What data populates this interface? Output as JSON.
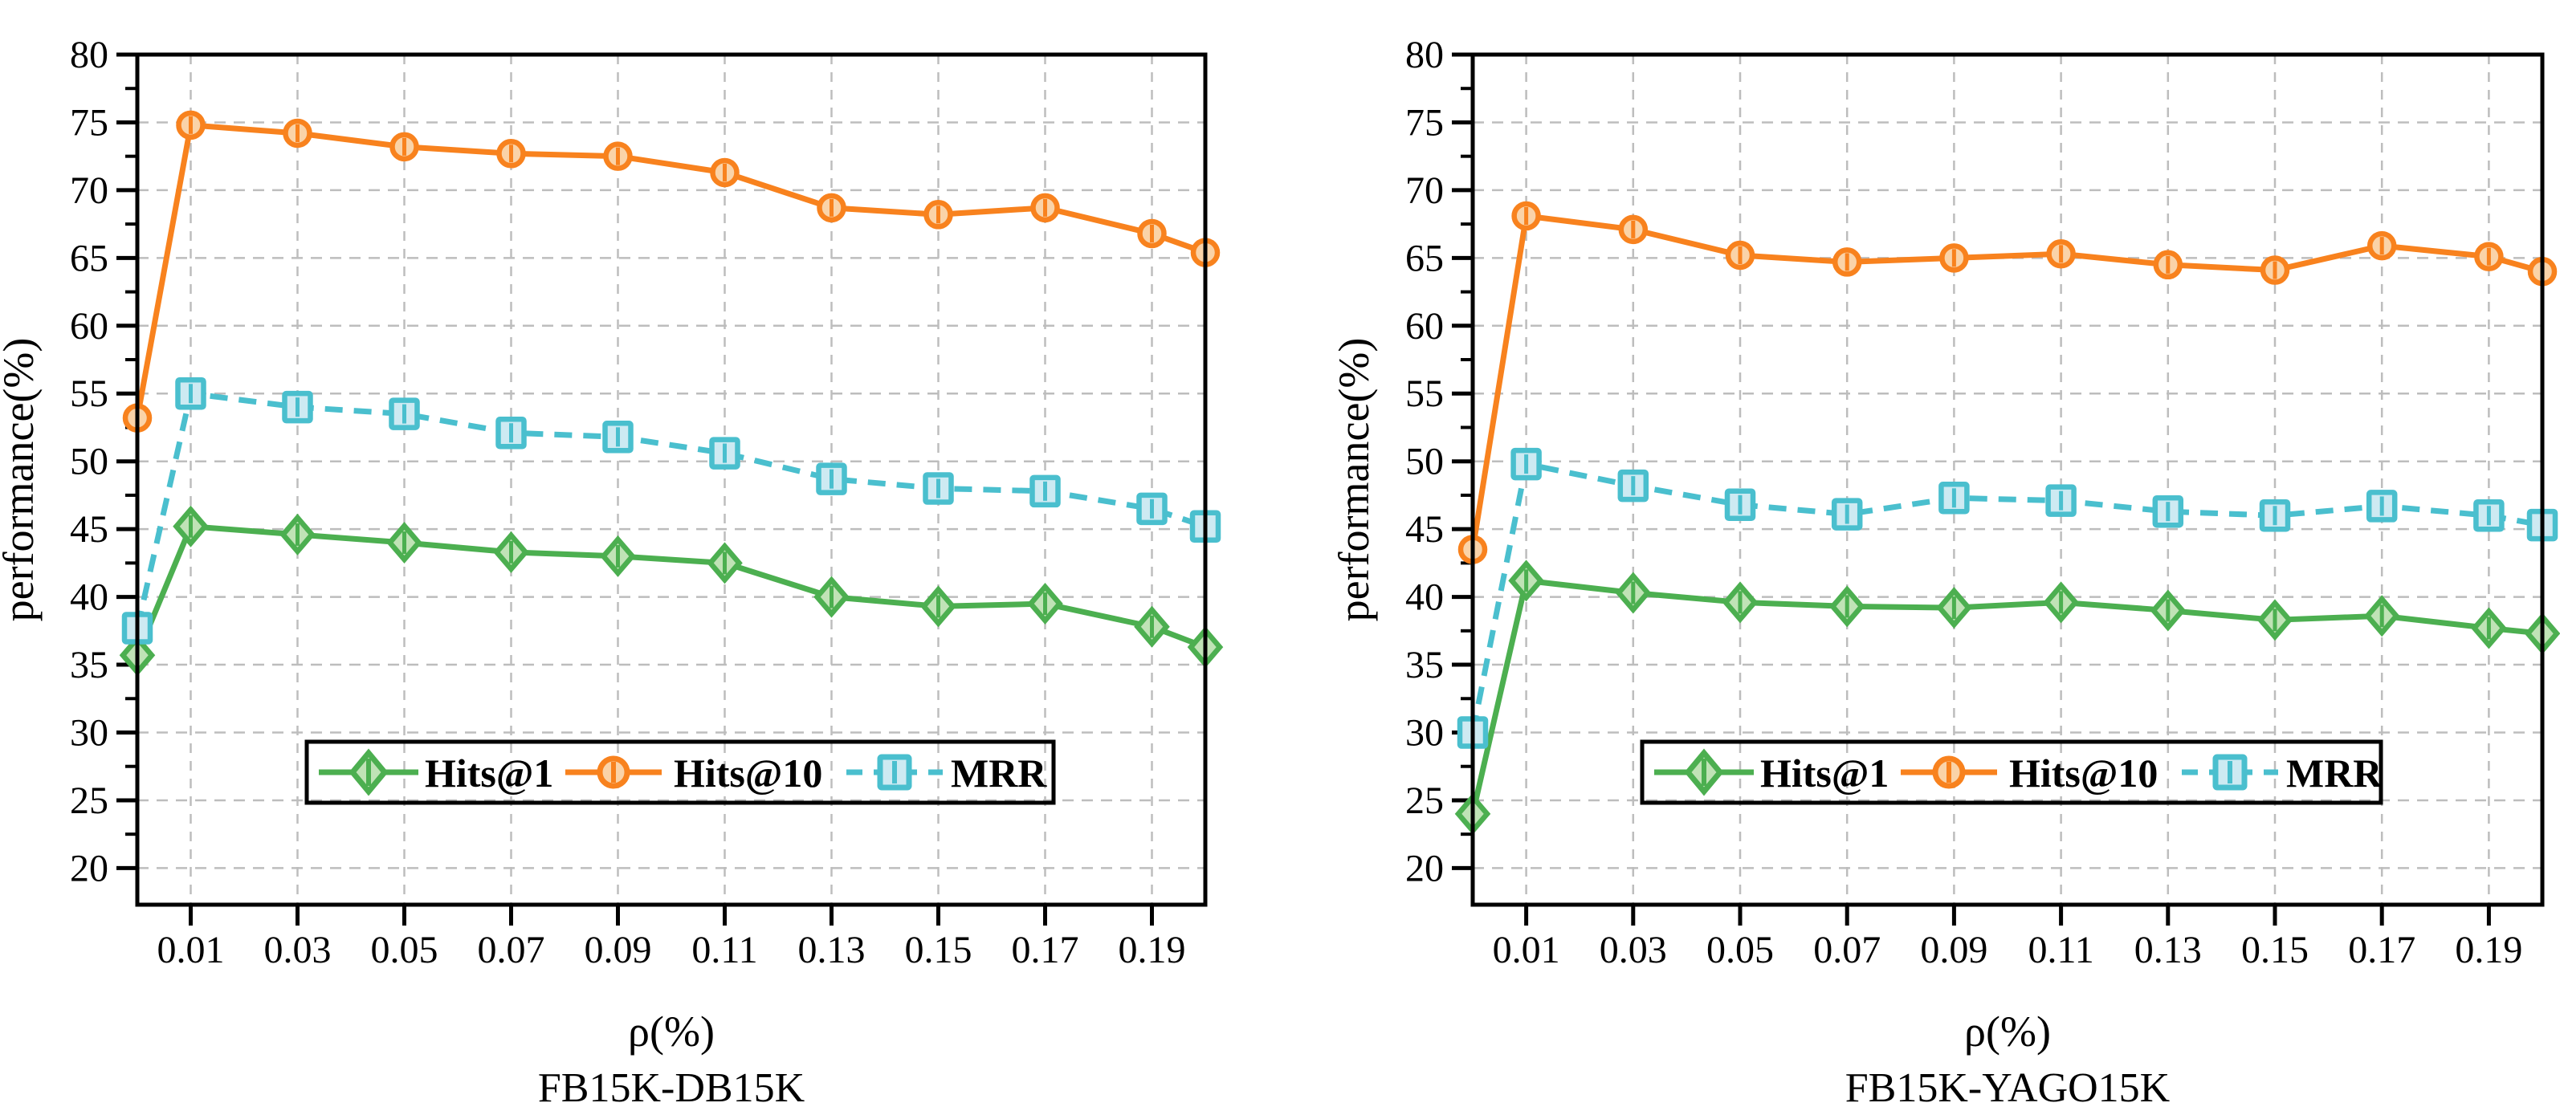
{
  "figure": {
    "background": "#ffffff",
    "grid_color": "#bdbdbd",
    "frame_color": "#000000",
    "text_color": "#000000"
  },
  "chart_data": [
    {
      "type": "line",
      "title": "FB15K-DB15K",
      "xlabel": "ρ(%)",
      "ylabel": "performance(%)",
      "xlim": [
        0,
        0.2
      ],
      "ylim": [
        17.3,
        80
      ],
      "y_ticks": [
        20,
        25,
        30,
        35,
        40,
        45,
        50,
        55,
        60,
        65,
        70,
        75,
        80
      ],
      "x_ticks": [
        0.01,
        0.03,
        0.05,
        0.07,
        0.09,
        0.11,
        0.13,
        0.15,
        0.17,
        0.19
      ],
      "x_tick_labels": [
        "0.01",
        "0.03",
        "0.05",
        "0.07",
        "0.09",
        "0.11",
        "0.13",
        "0.15",
        "0.17",
        "0.19"
      ],
      "grid": true,
      "legend_position": "inside-bottom-center",
      "x": [
        0,
        0.01,
        0.03,
        0.05,
        0.07,
        0.09,
        0.11,
        0.13,
        0.15,
        0.17,
        0.19,
        0.2
      ],
      "series": [
        {
          "name": "Hits@1",
          "color": "#4CAF50",
          "marker_fill": "#C0E3B6",
          "marker": "diamond",
          "line_style": "solid",
          "values": [
            35.7,
            45.2,
            44.6,
            44.0,
            43.3,
            43.0,
            42.5,
            40.0,
            39.3,
            39.5,
            37.8,
            36.3
          ]
        },
        {
          "name": "Hits@10",
          "color": "#F8821E",
          "marker_fill": "#FAD3A8",
          "marker": "circle",
          "line_style": "solid",
          "values": [
            53.2,
            74.8,
            74.2,
            73.2,
            72.7,
            72.5,
            71.3,
            68.7,
            68.2,
            68.7,
            66.8,
            65.4
          ]
        },
        {
          "name": "MRR",
          "color": "#4ABFCE",
          "marker_fill": "#CDEAF2",
          "marker": "square",
          "line_style": "dashed",
          "values": [
            37.7,
            55.0,
            54.0,
            53.5,
            52.1,
            51.8,
            50.6,
            48.7,
            48.0,
            47.8,
            46.5,
            45.2
          ]
        }
      ]
    },
    {
      "type": "line",
      "title": "FB15K-YAGO15K",
      "xlabel": "ρ(%)",
      "ylabel": "performance(%)",
      "xlim": [
        0,
        0.2
      ],
      "ylim": [
        17.3,
        80
      ],
      "y_ticks": [
        20,
        25,
        30,
        35,
        40,
        45,
        50,
        55,
        60,
        65,
        70,
        75,
        80
      ],
      "x_ticks": [
        0.01,
        0.03,
        0.05,
        0.07,
        0.09,
        0.11,
        0.13,
        0.15,
        0.17,
        0.19
      ],
      "x_tick_labels": [
        "0.01",
        "0.03",
        "0.05",
        "0.07",
        "0.09",
        "0.11",
        "0.13",
        "0.15",
        "0.17",
        "0.19"
      ],
      "grid": true,
      "legend_position": "inside-bottom-center",
      "x": [
        0,
        0.01,
        0.03,
        0.05,
        0.07,
        0.09,
        0.11,
        0.13,
        0.15,
        0.17,
        0.19,
        0.2
      ],
      "series": [
        {
          "name": "Hits@1",
          "color": "#4CAF50",
          "marker_fill": "#C0E3B6",
          "marker": "diamond",
          "line_style": "solid",
          "values": [
            24.0,
            41.2,
            40.3,
            39.6,
            39.3,
            39.2,
            39.6,
            39.0,
            38.3,
            38.6,
            37.7,
            37.3
          ]
        },
        {
          "name": "Hits@10",
          "color": "#F8821E",
          "marker_fill": "#FAD3A8",
          "marker": "circle",
          "line_style": "solid",
          "values": [
            43.5,
            68.1,
            67.1,
            65.2,
            64.7,
            65.0,
            65.3,
            64.5,
            64.1,
            65.9,
            65.1,
            64.0
          ]
        },
        {
          "name": "MRR",
          "color": "#4ABFCE",
          "marker_fill": "#CDEAF2",
          "marker": "square",
          "line_style": "dashed",
          "values": [
            30.0,
            49.8,
            48.2,
            46.8,
            46.1,
            47.3,
            47.1,
            46.3,
            46.0,
            46.7,
            46.0,
            45.3
          ]
        }
      ]
    }
  ]
}
